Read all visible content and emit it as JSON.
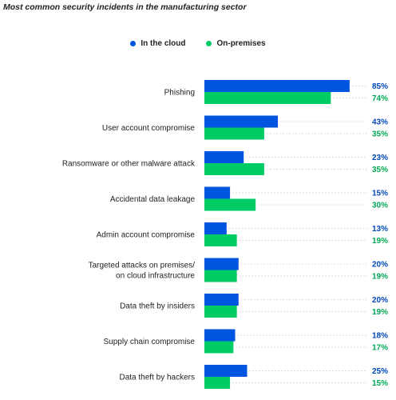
{
  "colors": {
    "cloud": "#0055e0",
    "onprem": "#00cc66",
    "grid": "#d0d0d0",
    "text": "#222222"
  },
  "chart_data": {
    "type": "bar",
    "orientation": "horizontal",
    "title": "Most common security incidents in the manufacturing sector",
    "categories": [
      [
        "Phishing"
      ],
      [
        "User account compromise"
      ],
      [
        "Ransomware or other malware attack"
      ],
      [
        "Accidental data leakage"
      ],
      [
        "Admin account compromise"
      ],
      [
        "Targeted attacks on premises/",
        "on cloud infrastructure"
      ],
      [
        "Data theft by insiders"
      ],
      [
        "Supply chain compromise"
      ],
      [
        "Data theft by hackers"
      ]
    ],
    "series": [
      {
        "name": "In the cloud",
        "values": [
          85,
          43,
          23,
          15,
          13,
          20,
          20,
          18,
          25
        ],
        "labels": [
          "85%",
          "43%",
          "23%",
          "15%",
          "13%",
          "20%",
          "20%",
          "18%",
          "25%"
        ]
      },
      {
        "name": "On-premises",
        "values": [
          74,
          35,
          35,
          30,
          19,
          19,
          19,
          17,
          15
        ],
        "labels": [
          "74%",
          "35%",
          "35%",
          "30%",
          "19%",
          "19%",
          "19%",
          "17%",
          "15%"
        ]
      }
    ],
    "xlim": [
      0,
      100
    ],
    "legend": "top-center",
    "grid": false
  }
}
